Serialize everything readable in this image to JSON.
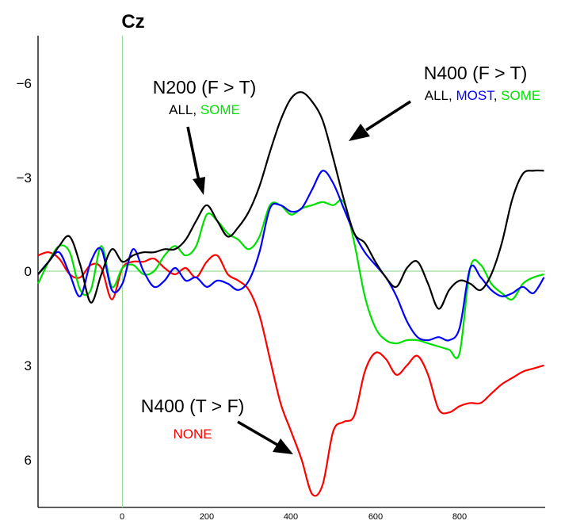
{
  "chart_data": {
    "type": "line",
    "title": "Cz",
    "xlabel": "",
    "ylabel": "",
    "xlim": [
      -200,
      1000
    ],
    "ylim": [
      -7.5,
      7.5
    ],
    "y_inverted": true,
    "x_ticks": [
      "0",
      "200",
      "400",
      "600",
      "800"
    ],
    "x_tick_values": [
      0,
      200,
      400,
      600,
      800
    ],
    "y_ticks": [
      "−6",
      "−3",
      "0",
      "3",
      "6"
    ],
    "y_tick_values": [
      -6,
      -3,
      0,
      3,
      6
    ],
    "colors": {
      "black": "#000000",
      "blue": "#0000ff",
      "green": "#00e000",
      "red": "#ff0000",
      "zero_line": "#9edc9e"
    },
    "series": [
      {
        "color": "#000000",
        "x": [
          -200,
          -175,
          -150,
          -125,
          -100,
          -75,
          -50,
          -25,
          0,
          25,
          50,
          75,
          100,
          125,
          150,
          175,
          200,
          225,
          250,
          275,
          300,
          325,
          350,
          375,
          400,
          425,
          450,
          475,
          500,
          525,
          550,
          575,
          600,
          625,
          650,
          675,
          700,
          725,
          750,
          775,
          800,
          825,
          850,
          875,
          900,
          925,
          950,
          975,
          1000
        ],
        "y": [
          0.1,
          -0.3,
          -0.8,
          -1.1,
          -0.2,
          1.0,
          0.1,
          -0.7,
          -0.3,
          -0.5,
          -0.6,
          -0.6,
          -0.7,
          -0.7,
          -1.0,
          -1.6,
          -2.1,
          -1.6,
          -1.1,
          -1.4,
          -1.9,
          -2.7,
          -3.8,
          -4.8,
          -5.5,
          -5.7,
          -5.4,
          -4.8,
          -3.6,
          -2.3,
          -1.2,
          -0.9,
          -0.3,
          0.2,
          0.5,
          -0.1,
          -0.3,
          0.4,
          1.2,
          0.6,
          0.3,
          0.4,
          0.6,
          0.1,
          -0.9,
          -2.3,
          -3.1,
          -3.2,
          -3.2
        ]
      },
      {
        "color": "#0000ff",
        "x": [
          -200,
          -175,
          -150,
          -125,
          -100,
          -75,
          -50,
          -25,
          0,
          25,
          50,
          75,
          100,
          125,
          150,
          175,
          200,
          225,
          250,
          275,
          300,
          325,
          350,
          375,
          400,
          425,
          450,
          475,
          500,
          525,
          550,
          575,
          600,
          625,
          650,
          675,
          700,
          725,
          750,
          775,
          800,
          825,
          850,
          875,
          900,
          925,
          950,
          975,
          1000
        ],
        "y": [
          0.1,
          -0.3,
          -0.6,
          0.1,
          0.8,
          -0.3,
          -0.7,
          0.6,
          0.4,
          -0.7,
          0.0,
          0.5,
          0.3,
          -0.1,
          0.3,
          0.2,
          0.5,
          0.3,
          0.4,
          0.6,
          0.3,
          -0.6,
          -2.0,
          -2.1,
          -1.9,
          -2.0,
          -2.6,
          -3.2,
          -2.8,
          -2.0,
          -1.2,
          -0.6,
          -0.2,
          0.2,
          0.8,
          1.6,
          2.1,
          2.2,
          2.1,
          2.2,
          1.8,
          -0.1,
          0.2,
          0.6,
          0.8,
          0.7,
          0.5,
          0.7,
          0.2
        ]
      },
      {
        "color": "#00e000",
        "x": [
          -200,
          -175,
          -150,
          -125,
          -100,
          -75,
          -50,
          -25,
          0,
          25,
          50,
          75,
          100,
          125,
          150,
          175,
          200,
          225,
          250,
          275,
          300,
          325,
          350,
          375,
          400,
          425,
          450,
          475,
          500,
          525,
          550,
          575,
          600,
          625,
          650,
          675,
          700,
          725,
          750,
          775,
          800,
          825,
          850,
          875,
          900,
          925,
          950,
          975,
          1000
        ],
        "y": [
          0.4,
          -0.3,
          -0.8,
          -0.6,
          0.6,
          0.6,
          -0.8,
          0.5,
          -0.1,
          -0.2,
          0.1,
          0.0,
          -0.5,
          -0.8,
          -0.5,
          -0.8,
          -1.8,
          -1.6,
          -1.2,
          -1.0,
          -0.7,
          -1.1,
          -2.1,
          -2.1,
          -1.8,
          -2.0,
          -2.1,
          -2.2,
          -2.1,
          -2.2,
          -0.9,
          0.8,
          1.8,
          2.2,
          2.3,
          2.2,
          2.2,
          2.3,
          2.4,
          2.5,
          2.6,
          -0.1,
          -0.2,
          0.4,
          0.7,
          0.9,
          0.4,
          0.2,
          0.1
        ]
      },
      {
        "color": "#ff0000",
        "x": [
          -200,
          -175,
          -150,
          -125,
          -100,
          -75,
          -50,
          -25,
          0,
          25,
          50,
          75,
          100,
          125,
          150,
          175,
          200,
          225,
          250,
          275,
          300,
          325,
          350,
          375,
          400,
          425,
          450,
          475,
          500,
          525,
          550,
          575,
          600,
          625,
          650,
          675,
          700,
          725,
          750,
          775,
          800,
          825,
          850,
          875,
          900,
          925,
          950,
          975,
          1000
        ],
        "y": [
          -0.5,
          -0.6,
          -0.4,
          0.1,
          0.2,
          -0.2,
          -0.1,
          0.9,
          -0.1,
          -0.3,
          -0.3,
          -0.4,
          -0.1,
          0.1,
          -0.1,
          0.2,
          -0.3,
          -0.5,
          0.1,
          0.3,
          0.6,
          1.4,
          2.8,
          4.2,
          5.1,
          6.0,
          7.1,
          6.8,
          5.1,
          4.8,
          4.6,
          3.2,
          2.6,
          2.8,
          3.3,
          3.0,
          2.7,
          3.3,
          4.4,
          4.5,
          4.3,
          4.2,
          4.2,
          3.9,
          3.6,
          3.4,
          3.2,
          3.1,
          3.0
        ]
      }
    ],
    "annotations": [
      {
        "title": "N200 (F > T)",
        "parts": [
          {
            "text": "ALL",
            "color": "#000000"
          },
          {
            "text": ", ",
            "color": "#000000"
          },
          {
            "text": "SOME",
            "color": "#00e000"
          }
        ]
      },
      {
        "title": "N400 (F > T)",
        "parts": [
          {
            "text": "ALL",
            "color": "#000000"
          },
          {
            "text": ", ",
            "color": "#000000"
          },
          {
            "text": "MOST",
            "color": "#0000ff"
          },
          {
            "text": ", ",
            "color": "#000000"
          },
          {
            "text": "SOME",
            "color": "#00e000"
          }
        ]
      },
      {
        "title": "N400 (T > F)",
        "parts": [
          {
            "text": "NONE",
            "color": "#ff0000"
          }
        ]
      }
    ]
  }
}
